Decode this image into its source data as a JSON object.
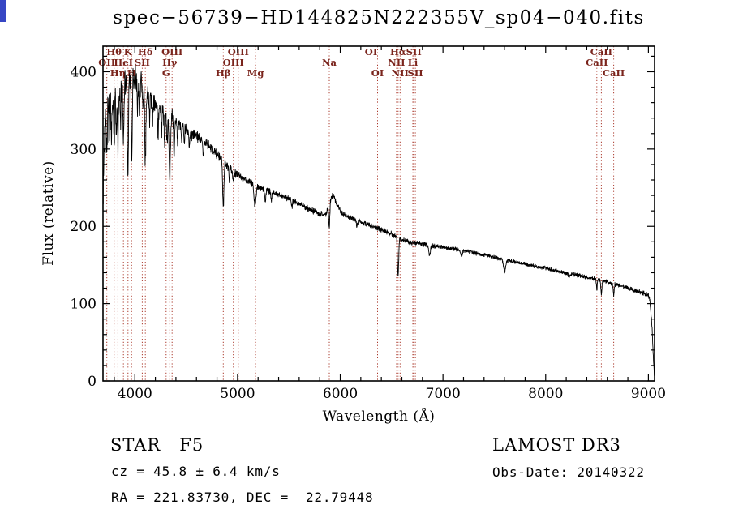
{
  "window": {
    "corner_accent_color": "#3646c4"
  },
  "chart_data": {
    "type": "line",
    "title": "spec−56739−HD144825N222355V_sp04−040.fits",
    "xlabel": "Wavelength (Å)",
    "ylabel": "Flux (relative)",
    "xlim": [
      3690,
      9060
    ],
    "ylim": [
      0,
      433
    ],
    "xticks": [
      4000,
      5000,
      6000,
      7000,
      8000,
      9000
    ],
    "yticks": [
      0,
      100,
      200,
      300,
      400
    ],
    "x_minor_step": 200,
    "y_minor_step": 20,
    "grid": false,
    "legend": "none",
    "series_color": "#000000",
    "marker_color": "#aa382b",
    "marker_label_color": "#7a241c",
    "spectral_lines": [
      {
        "wavelength": 3727,
        "label": "OII",
        "row": 2
      },
      {
        "wavelength": 3798,
        "label": "Hθ",
        "row": 1
      },
      {
        "wavelength": 3835,
        "label": "Hη",
        "row": 3
      },
      {
        "wavelength": 3889,
        "label": "HeI",
        "row": 2
      },
      {
        "wavelength": 3933,
        "label": "K",
        "row": 1
      },
      {
        "wavelength": 3968,
        "label": "H",
        "row": 3
      },
      {
        "wavelength": 4072,
        "label": "SII",
        "row": 2
      },
      {
        "wavelength": 4102,
        "label": "Hδ",
        "row": 1
      },
      {
        "wavelength": 4304,
        "label": "G",
        "row": 3
      },
      {
        "wavelength": 4340,
        "label": "Hγ",
        "row": 2
      },
      {
        "wavelength": 4363,
        "label": "OIII",
        "row": 1
      },
      {
        "wavelength": 4861,
        "label": "Hβ",
        "row": 3
      },
      {
        "wavelength": 4959,
        "label": "OIII",
        "row": 2
      },
      {
        "wavelength": 5007,
        "label": "OIII",
        "row": 1
      },
      {
        "wavelength": 5175,
        "label": "Mg",
        "row": 3
      },
      {
        "wavelength": 5893,
        "label": "Na",
        "row": 2
      },
      {
        "wavelength": 6300,
        "label": "OI",
        "row": 1
      },
      {
        "wavelength": 6363,
        "label": "OI",
        "row": 3
      },
      {
        "wavelength": 6548,
        "label": "NII",
        "row": 2
      },
      {
        "wavelength": 6563,
        "label": "Hα",
        "row": 1
      },
      {
        "wavelength": 6583,
        "label": "NII",
        "row": 3
      },
      {
        "wavelength": 6707,
        "label": "Li",
        "row": 2
      },
      {
        "wavelength": 6716,
        "label": "SII",
        "row": 1
      },
      {
        "wavelength": 6731,
        "label": "SII",
        "row": 3
      },
      {
        "wavelength": 8498,
        "label": "CaII",
        "row": 2
      },
      {
        "wavelength": 8542,
        "label": "CaII",
        "row": 1
      },
      {
        "wavelength": 8662,
        "label": "CaII",
        "row": 3
      }
    ],
    "spectrum": {
      "description": "Noisy stellar spectrum trace. continuum = anchor points [wavelength_A, flux_rel]; absorption_lines = [wavelength_A, depth, sigma_A]; noise_amplitude = [wavelength_A, amplitude].",
      "continuum": [
        [
          3692,
          250
        ],
        [
          3705,
          320
        ],
        [
          3725,
          358
        ],
        [
          3760,
          368
        ],
        [
          3800,
          375
        ],
        [
          3850,
          385
        ],
        [
          3900,
          395
        ],
        [
          3950,
          400
        ],
        [
          4000,
          400
        ],
        [
          4050,
          392
        ],
        [
          4120,
          380
        ],
        [
          4200,
          363
        ],
        [
          4300,
          351
        ],
        [
          4400,
          341
        ],
        [
          4500,
          331
        ],
        [
          4600,
          320
        ],
        [
          4700,
          307
        ],
        [
          4800,
          293
        ],
        [
          4900,
          278
        ],
        [
          5000,
          266
        ],
        [
          5100,
          258
        ],
        [
          5200,
          251
        ],
        [
          5300,
          246
        ],
        [
          5400,
          241
        ],
        [
          5500,
          236
        ],
        [
          5600,
          229
        ],
        [
          5700,
          222
        ],
        [
          5800,
          216
        ],
        [
          5860,
          216
        ],
        [
          5900,
          232
        ],
        [
          5930,
          241
        ],
        [
          5960,
          230
        ],
        [
          6020,
          216
        ],
        [
          6100,
          211
        ],
        [
          6200,
          206
        ],
        [
          6300,
          201
        ],
        [
          6400,
          196
        ],
        [
          6500,
          190
        ],
        [
          6600,
          183
        ],
        [
          6700,
          179
        ],
        [
          6800,
          177
        ],
        [
          6900,
          175
        ],
        [
          7000,
          173
        ],
        [
          7100,
          171
        ],
        [
          7200,
          169
        ],
        [
          7300,
          166
        ],
        [
          7400,
          163
        ],
        [
          7500,
          160
        ],
        [
          7600,
          157
        ],
        [
          7700,
          154
        ],
        [
          7800,
          151
        ],
        [
          7900,
          148
        ],
        [
          8000,
          146
        ],
        [
          8100,
          143
        ],
        [
          8200,
          140
        ],
        [
          8300,
          137
        ],
        [
          8400,
          134
        ],
        [
          8500,
          131
        ],
        [
          8600,
          128
        ],
        [
          8700,
          124
        ],
        [
          8800,
          120
        ],
        [
          8900,
          116
        ],
        [
          8960,
          113
        ],
        [
          9000,
          110
        ],
        [
          9015,
          103
        ],
        [
          9035,
          70
        ],
        [
          9050,
          25
        ],
        [
          9058,
          8
        ]
      ],
      "absorption_lines": [
        [
          3727,
          45,
          4
        ],
        [
          3750,
          55,
          4
        ],
        [
          3771,
          50,
          4
        ],
        [
          3798,
          62,
          4
        ],
        [
          3820,
          40,
          4
        ],
        [
          3835,
          68,
          4
        ],
        [
          3860,
          45,
          4
        ],
        [
          3889,
          75,
          5
        ],
        [
          3933,
          125,
          5
        ],
        [
          3970,
          105,
          5
        ],
        [
          4026,
          30,
          4
        ],
        [
          4045,
          35,
          4
        ],
        [
          4078,
          30,
          4
        ],
        [
          4102,
          92,
          6
        ],
        [
          4144,
          30,
          4
        ],
        [
          4172,
          25,
          4
        ],
        [
          4227,
          40,
          4
        ],
        [
          4260,
          25,
          4
        ],
        [
          4290,
          35,
          5
        ],
        [
          4315,
          40,
          5
        ],
        [
          4340,
          82,
          6
        ],
        [
          4383,
          45,
          5
        ],
        [
          4415,
          30,
          4
        ],
        [
          4455,
          20,
          4
        ],
        [
          4481,
          22,
          4
        ],
        [
          4530,
          20,
          5
        ],
        [
          4668,
          20,
          5
        ],
        [
          4861,
          60,
          6
        ],
        [
          4920,
          18,
          4
        ],
        [
          4957,
          12,
          4
        ],
        [
          5170,
          26,
          9
        ],
        [
          5270,
          16,
          6
        ],
        [
          5330,
          10,
          5
        ],
        [
          5530,
          8,
          5
        ],
        [
          5893,
          30,
          5
        ],
        [
          6162,
          8,
          5
        ],
        [
          6563,
          50,
          6
        ],
        [
          6870,
          12,
          9
        ],
        [
          7180,
          7,
          9
        ],
        [
          7600,
          16,
          11
        ],
        [
          8230,
          6,
          8
        ],
        [
          8498,
          12,
          4
        ],
        [
          8542,
          18,
          5
        ],
        [
          8662,
          14,
          5
        ]
      ],
      "noise_amplitude": [
        [
          3692,
          26
        ],
        [
          3900,
          20
        ],
        [
          4100,
          15
        ],
        [
          4400,
          10
        ],
        [
          4700,
          8
        ],
        [
          5000,
          6
        ],
        [
          5400,
          5
        ],
        [
          5800,
          4.5
        ],
        [
          6200,
          4
        ],
        [
          6600,
          4
        ],
        [
          7000,
          3.2
        ],
        [
          7600,
          3
        ],
        [
          8200,
          3
        ],
        [
          8800,
          3.5
        ],
        [
          9058,
          4
        ]
      ]
    }
  },
  "footer": {
    "object_type": "STAR   F5",
    "survey": "LAMOST DR3",
    "cz_line": "cz = 45.8 ± 6.4 km/s",
    "obs_date_line": "Obs-Date: 20140322",
    "ra_dec_line": "RA = 221.83730, DEC =  22.79448"
  }
}
